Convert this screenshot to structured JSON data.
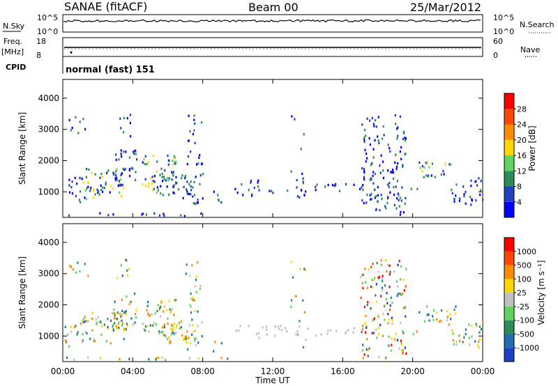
{
  "header": {
    "station": "SANAE (fitACF)",
    "beam": "Beam 00",
    "date": "25/Mar/2012"
  },
  "panels": {
    "nsky": {
      "left_label": "N.Sky",
      "right_label": "N.Search",
      "left_ticks": [
        "10^5",
        "10^0"
      ],
      "right_ticks": [
        "10^5",
        "10^0"
      ]
    },
    "freq": {
      "left_label_line1": "Freq.",
      "left_label_line2": "[MHz]",
      "right_label": "Nave",
      "left_ticks": [
        "18",
        "8"
      ],
      "right_ticks": [
        "60",
        "0"
      ]
    },
    "cpid": {
      "label": "CPID",
      "value": "normal (fast) 151"
    }
  },
  "chart_data": [
    {
      "type": "heatmap",
      "title": "",
      "xlabel": "Time UT",
      "ylabel": "Slant Range [km]",
      "x_ticks": [
        "00:00",
        "04:00",
        "08:00",
        "12:00",
        "16:00",
        "20:00",
        "00:00"
      ],
      "y_ticks": [
        1000,
        2000,
        3000,
        4000
      ],
      "xlim_hours": [
        0,
        24
      ],
      "ylim_km": [
        180,
        4600
      ],
      "colorbar": {
        "label": "Power [dB]",
        "ticks": [
          "4",
          "8",
          "12",
          "16",
          "20",
          "24",
          "28"
        ],
        "colors": [
          "#0000ff",
          "#2040c0",
          "#2e8b57",
          "#5fd35f",
          "#ffd700",
          "#ff8c00",
          "#ff4500",
          "#ff0000"
        ]
      }
    },
    {
      "type": "heatmap",
      "title": "",
      "xlabel": "Time UT",
      "ylabel": "Slant Range [km]",
      "x_ticks": [
        "00:00",
        "04:00",
        "08:00",
        "12:00",
        "16:00",
        "20:00",
        "00:00"
      ],
      "y_ticks": [
        1000,
        2000,
        3000,
        4000
      ],
      "xlim_hours": [
        0,
        24
      ],
      "ylim_km": [
        180,
        4600
      ],
      "colorbar": {
        "label": "Velocity [m s⁻¹]",
        "ticks": [
          "1000",
          "500",
          "100",
          "25",
          "-25",
          "-100",
          "-500",
          "-1000"
        ],
        "colors": [
          "#1c3fc4",
          "#1f6fb0",
          "#2e8b57",
          "#5fd35f",
          "#c0c0c0",
          "#ffd700",
          "#ff8c00",
          "#ff4500",
          "#ff0000"
        ]
      }
    }
  ]
}
